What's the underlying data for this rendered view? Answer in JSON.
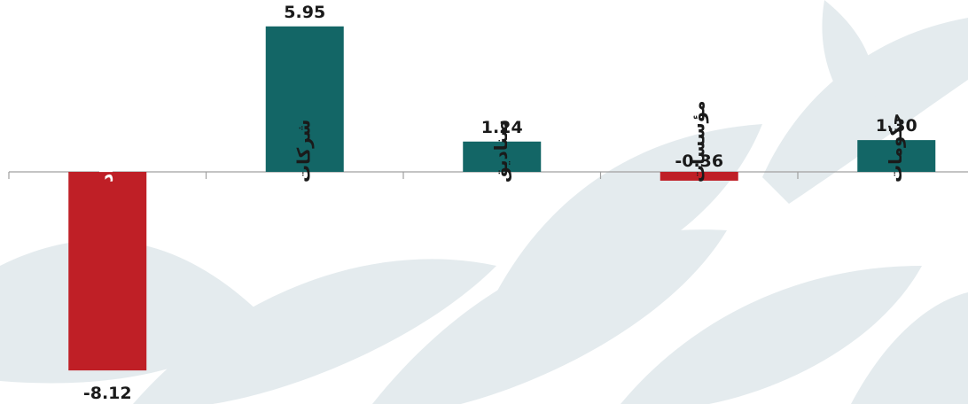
{
  "chart_data": {
    "type": "bar",
    "title": "",
    "xlabel": "",
    "ylabel": "",
    "categories": [
      "افراد",
      "شرکات",
      "صناديق",
      "مؤسسات",
      "حكومات"
    ],
    "values": [
      -8.12,
      5.95,
      1.24,
      -0.36,
      1.3
    ],
    "value_labels": [
      "-8.12",
      "5.95",
      "1.24",
      "-0.36",
      "1.30"
    ],
    "ylim": [
      -8.12,
      5.95
    ],
    "grid": false,
    "legend": "none",
    "colors": {
      "positive": "#136666",
      "negative": "#bf1f26",
      "label_on_bar": "#ffffff",
      "label_default": "#1a1a1a",
      "axis": "#a0a0a0",
      "background_watermark": "#e4ebee"
    }
  }
}
